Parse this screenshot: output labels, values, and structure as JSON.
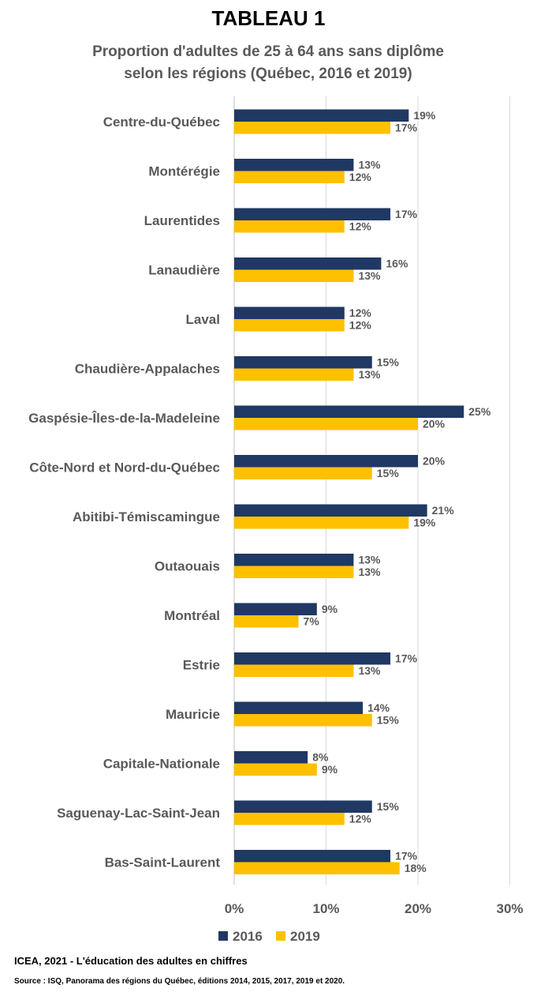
{
  "header": {
    "title": "TABLEAU 1",
    "subtitle_line1": "Proportion d'adultes de 25 à 64 ans sans diplôme",
    "subtitle_line2": "selon les régions (Québec, 2016 et 2019)"
  },
  "colors": {
    "series_2016": "#203864",
    "series_2019": "#FFC000",
    "label": "#595959",
    "grid": "#D9D9D9"
  },
  "chart_data": {
    "type": "bar",
    "orientation": "horizontal",
    "categories": [
      "Centre-du-Québec",
      "Montérégie",
      "Laurentides",
      "Lanaudière",
      "Laval",
      "Chaudière-Appalaches",
      "Gaspésie-Îles-de-la-Madeleine",
      "Côte-Nord et Nord-du-Québec",
      "Abitibi-Témiscamingue",
      "Outaouais",
      "Montréal",
      "Estrie",
      "Mauricie",
      "Capitale-Nationale",
      "Saguenay-Lac-Saint-Jean",
      "Bas-Saint-Laurent"
    ],
    "series": [
      {
        "name": "2016",
        "values": [
          19,
          13,
          17,
          16,
          12,
          15,
          25,
          20,
          21,
          13,
          9,
          17,
          14,
          8,
          15,
          17
        ]
      },
      {
        "name": "2019",
        "values": [
          17,
          12,
          12,
          13,
          12,
          13,
          20,
          15,
          19,
          13,
          7,
          13,
          15,
          9,
          12,
          18
        ]
      }
    ],
    "value_labels": {
      "2016": [
        "19%",
        "13%",
        "17%",
        "16%",
        "12%",
        "15%",
        "25%",
        "20%",
        "21%",
        "13%",
        "9%",
        "17%",
        "14%",
        "8%",
        "15%",
        "17%"
      ],
      "2019": [
        "17%",
        "12%",
        "12%",
        "13%",
        "12%",
        "13%",
        "20%",
        "15%",
        "19%",
        "13%",
        "7%",
        "13%",
        "15%",
        "9%",
        "12%",
        "18%"
      ]
    },
    "xlim": [
      0,
      30
    ],
    "xticks": [
      0,
      10,
      20,
      30
    ],
    "xtick_labels": [
      "0%",
      "10%",
      "20%",
      "30%"
    ],
    "grid": true,
    "legend_position": "bottom"
  },
  "footer": {
    "credit": "ICEA, 2021 - L'éducation des adultes en chiffres",
    "source": "Source : ISQ, Panorama  des régions du Québec, éditions 2014, 2015, 2017, 2019 et 2020."
  }
}
